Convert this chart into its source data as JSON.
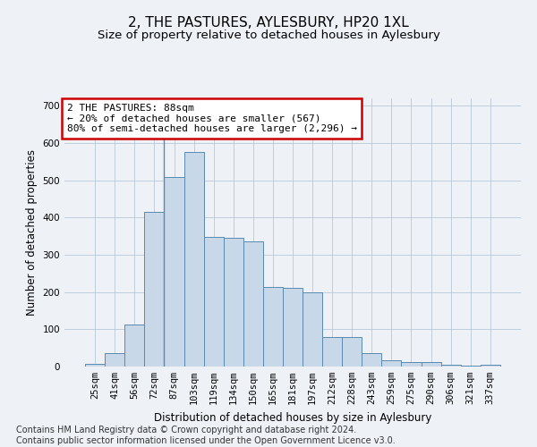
{
  "title": "2, THE PASTURES, AYLESBURY, HP20 1XL",
  "subtitle": "Size of property relative to detached houses in Aylesbury",
  "xlabel": "Distribution of detached houses by size in Aylesbury",
  "ylabel": "Number of detached properties",
  "bar_values": [
    8,
    35,
    112,
    415,
    508,
    575,
    348,
    345,
    335,
    213,
    212,
    200,
    80,
    80,
    35,
    18,
    12,
    12,
    4,
    2,
    5
  ],
  "bar_labels": [
    "25sqm",
    "41sqm",
    "56sqm",
    "72sqm",
    "87sqm",
    "103sqm",
    "119sqm",
    "134sqm",
    "150sqm",
    "165sqm",
    "181sqm",
    "197sqm",
    "212sqm",
    "228sqm",
    "243sqm",
    "259sqm",
    "275sqm",
    "290sqm",
    "306sqm",
    "321sqm",
    "337sqm"
  ],
  "bar_color": "#c8d8e8",
  "bar_edge_color": "#5a8ab0",
  "highlight_index": 4,
  "annotation_text": "2 THE PASTURES: 88sqm\n← 20% of detached houses are smaller (567)\n80% of semi-detached houses are larger (2,296) →",
  "annotation_box_color": "#ffffff",
  "annotation_box_edge": "#cc0000",
  "vline_index": 4,
  "ylim": [
    0,
    720
  ],
  "yticks": [
    0,
    100,
    200,
    300,
    400,
    500,
    600,
    700
  ],
  "bg_color": "#eef2f7",
  "grid_color": "#b8c8d8",
  "footer": "Contains HM Land Registry data © Crown copyright and database right 2024.\nContains public sector information licensed under the Open Government Licence v3.0.",
  "title_fontsize": 11,
  "subtitle_fontsize": 9.5,
  "xlabel_fontsize": 8.5,
  "ylabel_fontsize": 8.5,
  "tick_fontsize": 7.5,
  "annotation_fontsize": 8,
  "footer_fontsize": 7
}
